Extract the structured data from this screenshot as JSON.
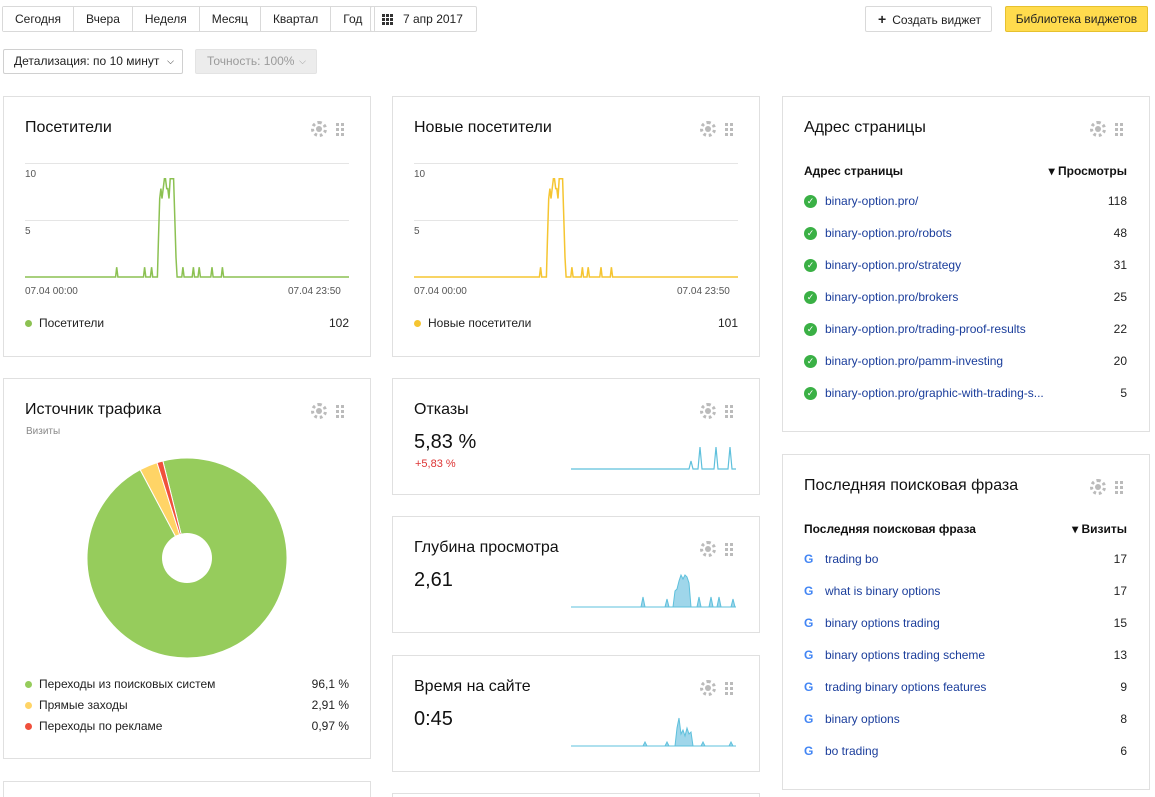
{
  "toolbar": {
    "periods": [
      "Сегодня",
      "Вчера",
      "Неделя",
      "Месяц",
      "Квартал",
      "Год"
    ],
    "date": "7 апр 2017",
    "create_widget": "Создать виджет",
    "library": "Библиотека виджетов",
    "detail": "Детализация: по 10 минут",
    "accuracy": "Точность: 100%"
  },
  "visitors": {
    "title": "Посетители",
    "y_ticks": [
      "10",
      "5"
    ],
    "x_start": "07.04 00:00",
    "x_end": "07.04 23:50",
    "legend": "Посетители",
    "total": "102",
    "color": "#8cc152"
  },
  "new_visitors": {
    "title": "Новые посетители",
    "y_ticks": [
      "10",
      "5"
    ],
    "x_start": "07.04 00:00",
    "x_end": "07.04 23:50",
    "legend": "Новые посетители",
    "total": "101",
    "color": "#f5c531"
  },
  "page_address": {
    "title": "Адрес страницы",
    "col_name": "Адрес страницы",
    "col_metric": "▾ Просмотры",
    "rows": [
      {
        "url": "binary-option.pro/",
        "value": "118"
      },
      {
        "url": "binary-option.pro/robots",
        "value": "48"
      },
      {
        "url": "binary-option.pro/strategy",
        "value": "31"
      },
      {
        "url": "binary-option.pro/brokers",
        "value": "25"
      },
      {
        "url": "binary-option.pro/trading-proof-results",
        "value": "22"
      },
      {
        "url": "binary-option.pro/pamm-investing",
        "value": "20"
      },
      {
        "url": "binary-option.pro/graphic-with-trading-s...",
        "value": "5"
      }
    ]
  },
  "traffic_source": {
    "title": "Источник трафика",
    "subtitle": "Визиты",
    "items": [
      {
        "label": "Переходы из поисковых систем",
        "value": "96,1 %",
        "color": "#96cc5c"
      },
      {
        "label": "Прямые заходы",
        "value": "2,91 %",
        "color": "#ffd466"
      },
      {
        "label": "Переходы по рекламе",
        "value": "0,97 %",
        "color": "#f0503c"
      }
    ]
  },
  "bounces": {
    "title": "Отказы",
    "value": "5,83 %",
    "delta": "+5,83 %"
  },
  "depth": {
    "title": "Глубина просмотра",
    "value": "2,61"
  },
  "time_on_site": {
    "title": "Время на сайте",
    "value": "0:45"
  },
  "search_phrase": {
    "title": "Последняя поисковая фраза",
    "col_name": "Последняя поисковая фраза",
    "col_metric": "▾ Визиты",
    "rows": [
      {
        "phrase": "trading bo",
        "value": "17"
      },
      {
        "phrase": "what is binary options",
        "value": "17"
      },
      {
        "phrase": "binary options trading",
        "value": "15"
      },
      {
        "phrase": "binary options trading scheme",
        "value": "13"
      },
      {
        "phrase": "trading binary options features",
        "value": "9"
      },
      {
        "phrase": "binary options",
        "value": "8"
      },
      {
        "phrase": "bo trading",
        "value": "6"
      }
    ]
  },
  "chart_data": [
    {
      "type": "line",
      "title": "Посетители",
      "ylim": [
        0,
        12
      ],
      "x_start": "07.04 00:00",
      "x_end": "07.04 23:50",
      "series": [
        {
          "name": "Посетители",
          "values": [
            0,
            0,
            0,
            0,
            0,
            0,
            0,
            0,
            0,
            0,
            0,
            0,
            0,
            0,
            0,
            0,
            0,
            0,
            0,
            0,
            0,
            0,
            0,
            0,
            0,
            0,
            0,
            0,
            0,
            0,
            0,
            0,
            0,
            0,
            0,
            0,
            0,
            0,
            0,
            0,
            0,
            0,
            0,
            0,
            0,
            0,
            0,
            0,
            0,
            0,
            0,
            0,
            0,
            0,
            0,
            0,
            0,
            0,
            0,
            0,
            0,
            0,
            0,
            0,
            0,
            0,
            0,
            0,
            0,
            0,
            0,
            0,
            0,
            0,
            0,
            0,
            0,
            0,
            0,
            1,
            0,
            0,
            0,
            0,
            0,
            0,
            0,
            0,
            0,
            0,
            0,
            0,
            0,
            0,
            0,
            0,
            0,
            0,
            0,
            0,
            0,
            0,
            0,
            1,
            0,
            0,
            0,
            0,
            0,
            1,
            0,
            0,
            0,
            0,
            0,
            4,
            8,
            9,
            8,
            9,
            10,
            10,
            9,
            9,
            8,
            10,
            10,
            10,
            10,
            6,
            2,
            0,
            0,
            0,
            0,
            0,
            1,
            0,
            0,
            0,
            0,
            0,
            0,
            0,
            0,
            1,
            0,
            0,
            0,
            0,
            1,
            0,
            0,
            0,
            0,
            0,
            0,
            0,
            0,
            0,
            0,
            1,
            0,
            0,
            0,
            0,
            0,
            0,
            0,
            0,
            1,
            0,
            0,
            0,
            0,
            0,
            0,
            0,
            0,
            0,
            0,
            0,
            0,
            0,
            0,
            0,
            0,
            0,
            0,
            0,
            0,
            0,
            0,
            0,
            0,
            0,
            0,
            0,
            0,
            0,
            0,
            0,
            0,
            0,
            0,
            0,
            0,
            0,
            0,
            0,
            0,
            0,
            0,
            0,
            0,
            0,
            0,
            0,
            0,
            0,
            0,
            0,
            0,
            0,
            0,
            0,
            0,
            0,
            0,
            0,
            0,
            0,
            0,
            0,
            0,
            0,
            0,
            0,
            0,
            0,
            0,
            0,
            0,
            0,
            0,
            0,
            0,
            0,
            0,
            0,
            0,
            0,
            0,
            0,
            0,
            0,
            0,
            0,
            0,
            0,
            0,
            0,
            0,
            0,
            0,
            0,
            0,
            0,
            0,
            0,
            0,
            0,
            0,
            0,
            0,
            0,
            0,
            0,
            0,
            0
          ]
        }
      ]
    },
    {
      "type": "line",
      "title": "Новые посетители",
      "ylim": [
        0,
        12
      ],
      "x_start": "07.04 00:00",
      "x_end": "07.04 23:50",
      "series": [
        {
          "name": "Новые посетители",
          "values": [
            0,
            0,
            0,
            0,
            0,
            0,
            0,
            0,
            0,
            0,
            0,
            0,
            0,
            0,
            0,
            0,
            0,
            0,
            0,
            0,
            0,
            0,
            0,
            0,
            0,
            0,
            0,
            0,
            0,
            0,
            0,
            0,
            0,
            0,
            0,
            0,
            0,
            0,
            0,
            0,
            0,
            0,
            0,
            0,
            0,
            0,
            0,
            0,
            0,
            0,
            0,
            0,
            0,
            0,
            0,
            0,
            0,
            0,
            0,
            0,
            0,
            0,
            0,
            0,
            0,
            0,
            0,
            0,
            0,
            0,
            0,
            0,
            0,
            0,
            0,
            0,
            0,
            0,
            0,
            0,
            0,
            0,
            0,
            0,
            0,
            0,
            0,
            0,
            0,
            0,
            0,
            0,
            0,
            0,
            0,
            0,
            0,
            0,
            0,
            0,
            0,
            0,
            0,
            0,
            0,
            0,
            0,
            0,
            0,
            1,
            0,
            0,
            0,
            0,
            0,
            4,
            8,
            9,
            8,
            9,
            10,
            10,
            9,
            9,
            8,
            10,
            10,
            10,
            10,
            6,
            2,
            0,
            0,
            0,
            0,
            0,
            1,
            0,
            0,
            0,
            0,
            0,
            0,
            0,
            0,
            1,
            0,
            0,
            0,
            0,
            1,
            0,
            0,
            0,
            0,
            0,
            0,
            0,
            0,
            0,
            0,
            1,
            0,
            0,
            0,
            0,
            0,
            0,
            0,
            0,
            1,
            0,
            0,
            0,
            0,
            0,
            0,
            0,
            0,
            0,
            0,
            0,
            0,
            0,
            0,
            0,
            0,
            0,
            0,
            0,
            0,
            0,
            0,
            0,
            0,
            0,
            0,
            0,
            0,
            0,
            0,
            0,
            0,
            0,
            0,
            0,
            0,
            0,
            0,
            0,
            0,
            0,
            0,
            0,
            0,
            0,
            0,
            0,
            0,
            0,
            0,
            0,
            0,
            0,
            0,
            0,
            0,
            0,
            0,
            0,
            0,
            0,
            0,
            0,
            0,
            0,
            0,
            0,
            0,
            0,
            0,
            0,
            0,
            0,
            0,
            0,
            0,
            0,
            0,
            0,
            0,
            0,
            0,
            0,
            0,
            0,
            0,
            0,
            0,
            0,
            0,
            0,
            0,
            0,
            0,
            0,
            0,
            0,
            0,
            0,
            0,
            0,
            0,
            0,
            0,
            0,
            0,
            0,
            0,
            0
          ]
        }
      ]
    },
    {
      "type": "pie",
      "title": "Источник трафика",
      "categories": [
        "Переходы из поисковых систем",
        "Прямые заходы",
        "Переходы по рекламе"
      ],
      "values": [
        96.1,
        2.91,
        0.97
      ]
    }
  ]
}
